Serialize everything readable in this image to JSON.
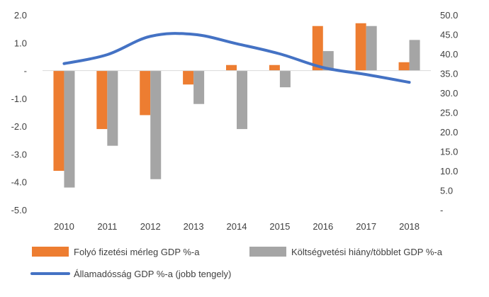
{
  "chart_data": {
    "type": "bar",
    "categories": [
      "2010",
      "2011",
      "2012",
      "2013",
      "2014",
      "2015",
      "2016",
      "2017",
      "2018"
    ],
    "series": [
      {
        "name": "Folyó fizetési mérleg GDP %-a",
        "kind": "bar",
        "axis": "left",
        "color": "#ED7D31",
        "values": [
          -3.6,
          -2.1,
          -1.6,
          -0.5,
          0.2,
          0.2,
          1.6,
          1.7,
          0.3
        ]
      },
      {
        "name": "Költségvetési hiány/többlet GDP %-a",
        "kind": "bar",
        "axis": "left",
        "color": "#A5A5A5",
        "values": [
          -4.2,
          -2.7,
          -3.9,
          -1.2,
          -2.1,
          -0.6,
          0.7,
          1.6,
          1.1
        ]
      },
      {
        "name": "Államadósság GDP %-a (jobb tengely)",
        "kind": "line",
        "axis": "right",
        "color": "#4472C4",
        "values": [
          37.5,
          39.8,
          44.5,
          45.0,
          42.6,
          40.0,
          36.5,
          34.7,
          32.7
        ]
      }
    ],
    "y_left": {
      "ylim": [
        -5.0,
        2.0
      ],
      "ticks": [
        2.0,
        1.0,
        0,
        -1.0,
        -2.0,
        -3.0,
        -4.0,
        -5.0
      ],
      "tick_labels": [
        "2.0",
        "1.0",
        "-",
        "-1.0",
        "-2.0",
        "-3.0",
        "-4.0",
        "-5.0"
      ]
    },
    "y_right": {
      "ylim": [
        0,
        50.0
      ],
      "ticks": [
        50.0,
        45.0,
        40.0,
        35.0,
        30.0,
        25.0,
        20.0,
        15.0,
        10.0,
        5.0,
        0
      ],
      "tick_labels": [
        "50.0",
        "45.0",
        "40.0",
        "35.0",
        "30.0",
        "25.0",
        "20.0",
        "15.0",
        "10.0",
        "5.0",
        "-"
      ]
    },
    "grid": false,
    "legend_position": "bottom"
  }
}
